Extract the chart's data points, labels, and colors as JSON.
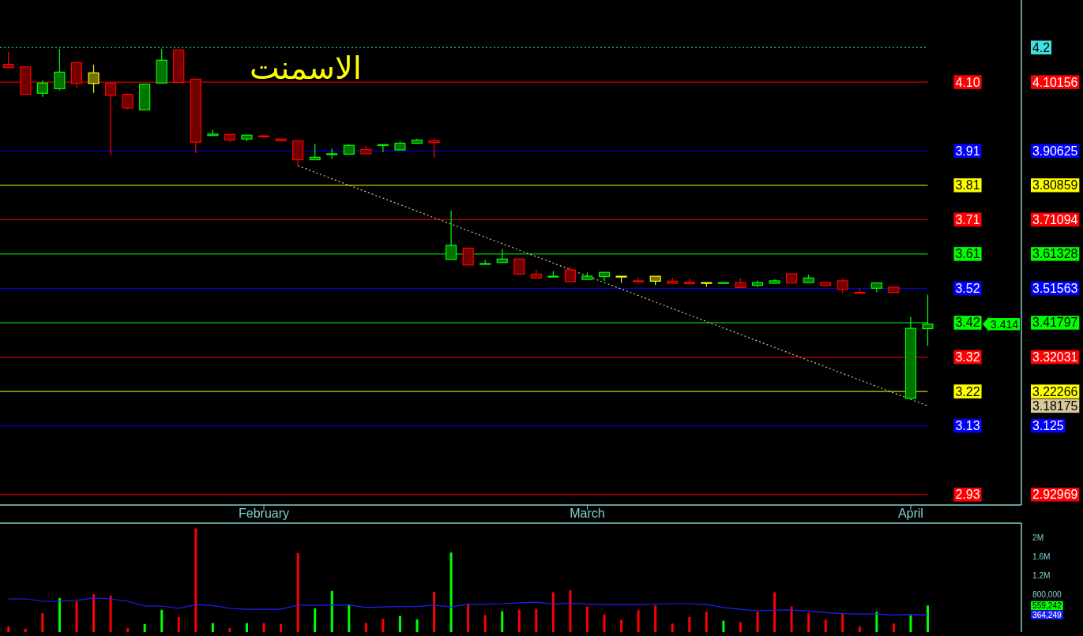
{
  "chart_data": [
    {
      "type": "candlestick",
      "title": "الاسمنت",
      "categories": [
        null,
        null,
        null,
        null,
        null,
        null,
        null,
        null,
        null,
        null,
        null,
        null,
        null,
        null,
        null,
        "February",
        null,
        null,
        null,
        null,
        null,
        null,
        null,
        null,
        null,
        null,
        null,
        null,
        null,
        null,
        null,
        null,
        null,
        null,
        "March",
        null,
        null,
        null,
        null,
        null,
        null,
        null,
        null,
        null,
        null,
        null,
        null,
        null,
        null,
        null,
        null,
        null,
        null,
        "April",
        null,
        null,
        null,
        null,
        null,
        null
      ],
      "ohlc": [
        [
          4.152,
          4.187,
          4.143,
          4.143
        ],
        [
          4.145,
          4.145,
          4.067,
          4.067
        ],
        [
          4.07,
          4.107,
          4.06,
          4.099
        ],
        [
          4.083,
          4.196,
          4.078,
          4.13
        ],
        [
          4.157,
          4.157,
          4.084,
          4.098
        ],
        [
          4.128,
          4.151,
          4.071,
          4.098
        ],
        [
          4.099,
          4.099,
          3.894,
          4.064
        ],
        [
          4.067,
          4.067,
          4.024,
          4.028
        ],
        [
          4.023,
          4.096,
          4.023,
          4.096
        ],
        [
          4.099,
          4.196,
          4.099,
          4.164
        ],
        [
          4.193,
          4.193,
          4.101,
          4.101
        ],
        [
          4.11,
          4.11,
          3.9,
          3.931
        ],
        [
          3.95,
          3.967,
          3.95,
          3.954
        ],
        [
          3.953,
          3.953,
          3.931,
          3.937
        ],
        [
          3.94,
          3.951,
          3.934,
          3.951
        ],
        [
          3.949,
          3.951,
          3.943,
          3.946
        ],
        [
          3.94,
          3.94,
          3.935,
          3.935
        ],
        [
          3.935,
          3.935,
          3.864,
          3.881
        ],
        [
          3.881,
          3.927,
          3.881,
          3.888
        ],
        [
          3.896,
          3.913,
          3.884,
          3.898
        ],
        [
          3.897,
          3.926,
          3.897,
          3.922
        ],
        [
          3.91,
          3.922,
          3.898,
          3.898
        ],
        [
          3.923,
          3.924,
          3.902,
          3.924
        ],
        [
          3.909,
          3.933,
          3.909,
          3.928
        ],
        [
          3.928,
          3.941,
          3.928,
          3.937
        ],
        [
          3.935,
          3.941,
          3.887,
          3.93
        ],
        [
          3.598,
          3.737,
          3.598,
          3.638
        ],
        [
          3.63,
          3.63,
          3.582,
          3.582
        ],
        [
          3.585,
          3.597,
          3.585,
          3.586
        ],
        [
          3.589,
          3.627,
          3.589,
          3.599
        ],
        [
          3.599,
          3.599,
          3.556,
          3.556
        ],
        [
          3.556,
          3.569,
          3.545,
          3.545
        ],
        [
          3.549,
          3.564,
          3.549,
          3.55
        ],
        [
          3.568,
          3.577,
          3.535,
          3.535
        ],
        [
          3.541,
          3.561,
          3.541,
          3.55
        ],
        [
          3.549,
          3.561,
          3.537,
          3.561
        ],
        [
          3.55,
          3.55,
          3.531,
          3.549
        ],
        [
          3.537,
          3.546,
          3.536,
          3.536
        ],
        [
          3.55,
          3.55,
          3.525,
          3.536
        ],
        [
          3.536,
          3.545,
          3.53,
          3.53
        ],
        [
          3.533,
          3.544,
          3.529,
          3.529
        ],
        [
          3.532,
          3.532,
          3.52,
          3.531
        ],
        [
          3.53,
          3.532,
          3.53,
          3.532
        ],
        [
          3.532,
          3.544,
          3.518,
          3.518
        ],
        [
          3.524,
          3.538,
          3.52,
          3.532
        ],
        [
          3.53,
          3.541,
          3.53,
          3.537
        ],
        [
          3.557,
          3.557,
          3.531,
          3.531
        ],
        [
          3.532,
          3.554,
          3.532,
          3.545
        ],
        [
          3.532,
          3.532,
          3.524,
          3.524
        ],
        [
          3.537,
          3.543,
          3.502,
          3.513
        ],
        [
          3.504,
          3.515,
          3.503,
          3.503
        ],
        [
          3.516,
          3.531,
          3.504,
          3.531
        ],
        [
          3.519,
          3.519,
          3.504,
          3.504
        ],
        [
          3.203,
          3.434,
          3.203,
          3.402
        ],
        [
          3.401,
          3.498,
          3.352,
          3.414
        ],
        null,
        null,
        null,
        null,
        null
      ],
      "colors": [
        "#ff0000",
        "#ff0000",
        "#00ff00",
        "#00ff00",
        "#ff0000",
        "#ffff00",
        "#ff0000",
        "#ff0000",
        "#00ff00",
        "#00ff00",
        "#ff0000",
        "#ff0000",
        "#00ff00",
        "#ff0000",
        "#00ff00",
        "#ff0000",
        "#ff0000",
        "#ff0000",
        "#00ff00",
        "#00ff00",
        "#00ff00",
        "#ff0000",
        "#00ff00",
        "#00ff00",
        "#00ff00",
        "#ff0000",
        "#00ff00",
        "#ff0000",
        "#00ff00",
        "#00ff00",
        "#ff0000",
        "#ff0000",
        "#00ff00",
        "#ff0000",
        "#00ff00",
        "#00ff00",
        "#ffff00",
        "#ff0000",
        "#ffff00",
        "#ff0000",
        "#ff0000",
        "#ffff00",
        "#00ff00",
        "#ff0000",
        "#00ff00",
        "#00ff00",
        "#ff0000",
        "#00ff00",
        "#ff0000",
        "#ff0000",
        "#ff0000",
        "#00ff00",
        "#ff0000",
        "#00ff00",
        "#00ff00",
        null,
        null,
        null,
        null,
        null
      ],
      "series": [
        {
          "type": "line",
          "values": [
            null,
            null,
            null,
            null,
            null,
            null,
            null,
            null,
            null,
            null,
            null,
            null,
            null,
            null,
            null,
            null,
            null,
            3.864,
            null,
            null,
            null,
            null,
            null,
            null,
            null,
            null,
            null,
            null,
            null,
            null,
            null,
            null,
            null,
            null,
            null,
            null,
            null,
            null,
            null,
            null,
            null,
            null,
            null,
            null,
            null,
            null,
            null,
            null,
            null,
            null,
            null,
            null,
            null,
            null,
            3.18175,
            null,
            null,
            null,
            null,
            null
          ],
          "color": "#d8c89a",
          "line_style": "dotted"
        }
      ],
      "ylim": [
        2.9,
        4.335
      ],
      "yticks": [
        4.2,
        4.10156,
        3.90625,
        3.80859,
        3.71094,
        3.61328,
        3.51563,
        3.41797,
        3.32031,
        3.22266,
        3.18175,
        3.125,
        2.92969
      ],
      "annotations": [
        {
          "text": "3.414",
          "y": 3.414
        }
      ],
      "ref_lines": [
        {
          "axis": "y",
          "value": 4.2,
          "color": "#40e0e0",
          "line_style": "dotted"
        },
        {
          "axis": "y",
          "value": 4.10156,
          "label": "4.10",
          "color": "#ff0000"
        },
        {
          "axis": "y",
          "value": 3.90625,
          "label": "3.91",
          "color": "#0000ff"
        },
        {
          "axis": "y",
          "value": 3.80859,
          "label": "3.81",
          "color": "#ffff00"
        },
        {
          "axis": "y",
          "value": 3.71094,
          "label": "3.71",
          "color": "#ff0000"
        },
        {
          "axis": "y",
          "value": 3.61328,
          "label": "3.61",
          "color": "#00ff00"
        },
        {
          "axis": "y",
          "value": 3.51563,
          "label": "3.52",
          "color": "#0000ff"
        },
        {
          "axis": "y",
          "value": 3.41797,
          "label": "3.42",
          "color": "#00ff00"
        },
        {
          "axis": "y",
          "value": 3.32031,
          "label": "3.32",
          "color": "#ff0000"
        },
        {
          "axis": "y",
          "value": 3.22266,
          "label": "3.22",
          "color": "#ffff00"
        },
        {
          "axis": "y",
          "value": 3.125,
          "label": "3.13",
          "color": "#0000ff"
        },
        {
          "axis": "y",
          "value": 2.92969,
          "label": "2.93",
          "color": "#ff0000"
        }
      ]
    },
    {
      "type": "bar",
      "categories": [
        null,
        null,
        null,
        null,
        null,
        null,
        null,
        null,
        null,
        null,
        null,
        null,
        null,
        null,
        null,
        null,
        null,
        null,
        null,
        null,
        null,
        null,
        null,
        null,
        null,
        null,
        null,
        null,
        null,
        null,
        null,
        null,
        null,
        null,
        null,
        null,
        null,
        null,
        null,
        null,
        null,
        null,
        null,
        null,
        null,
        null,
        null,
        null,
        null,
        null,
        null,
        null,
        null,
        null,
        null,
        null,
        null,
        null,
        null,
        null
      ],
      "series": [
        {
          "type": "bar",
          "values": [
            120000,
            70000,
            400000,
            720000,
            650000,
            800000,
            770000,
            80000,
            170000,
            470000,
            320000,
            2190000,
            190000,
            80000,
            190000,
            190000,
            170000,
            1670000,
            500000,
            870000,
            580000,
            190000,
            280000,
            340000,
            270000,
            850000,
            1680000,
            580000,
            360000,
            440000,
            470000,
            490000,
            840000,
            880000,
            540000,
            370000,
            260000,
            460000,
            560000,
            180000,
            320000,
            430000,
            240000,
            210000,
            430000,
            840000,
            540000,
            400000,
            260000,
            380000,
            120000,
            430000,
            180000,
            350000,
            559242,
            null,
            null,
            null,
            null,
            null
          ],
          "colors": [
            "#ff0000",
            "#ff0000",
            "#ff0000",
            "#00ff00",
            "#ff0000",
            "#ff0000",
            "#ff0000",
            "#ff0000",
            "#00ff00",
            "#00ff00",
            "#ff0000",
            "#ff0000",
            "#00ff00",
            "#ff0000",
            "#00ff00",
            "#ff0000",
            "#ff0000",
            "#ff0000",
            "#00ff00",
            "#00ff00",
            "#00ff00",
            "#ff0000",
            "#ff0000",
            "#00ff00",
            "#00ff00",
            "#ff0000",
            "#00ff00",
            "#ff0000",
            "#ff0000",
            "#00ff00",
            "#ff0000",
            "#ff0000",
            "#ff0000",
            "#ff0000",
            "#ff0000",
            "#ff0000",
            "#ff0000",
            "#ff0000",
            "#ff0000",
            "#ff0000",
            "#ff0000",
            "#ff0000",
            "#00ff00",
            "#ff0000",
            "#ff0000",
            "#ff0000",
            "#ff0000",
            "#ff0000",
            "#ff0000",
            "#ff0000",
            "#ff0000",
            "#00ff00",
            "#ff0000",
            "#00ff00",
            "#00ff00",
            null,
            null,
            null,
            null,
            null
          ]
        },
        {
          "type": "line",
          "color": "#2020ff",
          "values": [
            700000,
            700000,
            650000,
            650000,
            670000,
            720000,
            700000,
            650000,
            550000,
            550000,
            500000,
            580000,
            560000,
            500000,
            480000,
            480000,
            480000,
            570000,
            570000,
            570000,
            570000,
            520000,
            530000,
            540000,
            540000,
            570000,
            530000,
            590000,
            590000,
            600000,
            620000,
            630000,
            590000,
            610000,
            590000,
            580000,
            580000,
            580000,
            590000,
            600000,
            600000,
            580000,
            520000,
            480000,
            450000,
            460000,
            470000,
            440000,
            410000,
            390000,
            380000,
            380000,
            360000,
            370000,
            364249,
            null,
            null,
            null,
            null,
            null
          ]
        }
      ],
      "ylim": [
        0,
        2300000
      ],
      "yticks": [
        {
          "value": 2000000,
          "label": "2M"
        },
        {
          "value": 1600000,
          "label": "1.6M"
        },
        {
          "value": 1200000,
          "label": "1.2M"
        },
        {
          "value": 800000,
          "label": "800,000"
        },
        {
          "value": 559242,
          "label": "559,242"
        },
        {
          "value": 364249,
          "label": "364,249"
        }
      ],
      "tick_labels": "y"
    }
  ]
}
